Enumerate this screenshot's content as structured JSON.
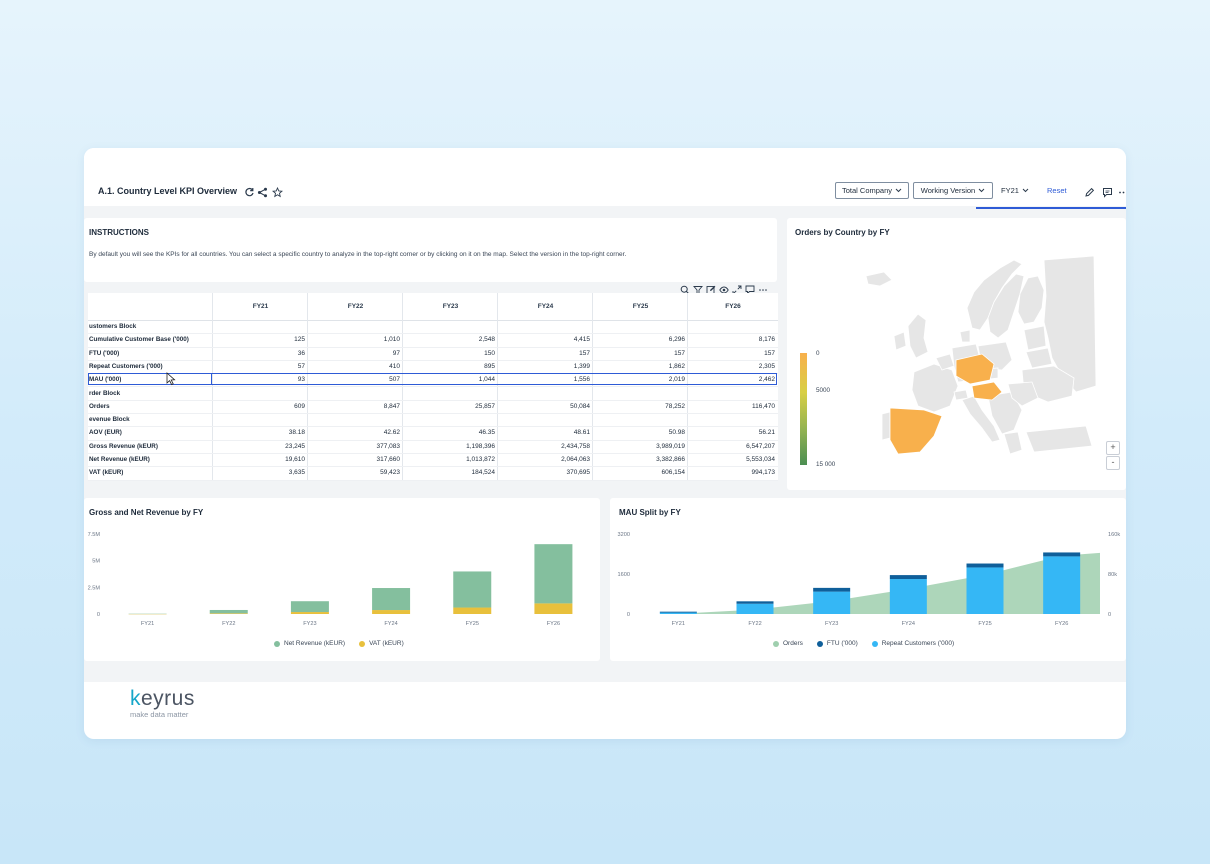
{
  "header": {
    "title": "A.1. Country Level KPI Overview",
    "company_select": "Total Company",
    "version_select": "Working Version",
    "fy_select": "FY21",
    "reset_label": "Reset"
  },
  "instructions": {
    "title": "INSTRUCTIONS",
    "text": "By default you will see the KPIs for all countries. You can select a specific country to analyze in the top-right corner or by clicking on it on the map. Select the version in the top-right corner."
  },
  "table": {
    "columns": [
      "FY21",
      "FY22",
      "FY23",
      "FY24",
      "FY25",
      "FY26"
    ],
    "rows": [
      {
        "label": "ustomers Block",
        "values": [
          "",
          "",
          "",
          "",
          "",
          ""
        ]
      },
      {
        "label": "Cumulative Customer Base ('000)",
        "values": [
          "125",
          "1,010",
          "2,548",
          "4,415",
          "6,296",
          "8,176"
        ]
      },
      {
        "label": "FTU ('000)",
        "values": [
          "36",
          "97",
          "150",
          "157",
          "157",
          "157"
        ]
      },
      {
        "label": "Repeat Customers ('000)",
        "values": [
          "57",
          "410",
          "895",
          "1,399",
          "1,862",
          "2,305"
        ]
      },
      {
        "label": "MAU ('000)",
        "values": [
          "93",
          "507",
          "1,044",
          "1,556",
          "2,019",
          "2,462"
        ]
      },
      {
        "label": "rder Block",
        "values": [
          "",
          "",
          "",
          "",
          "",
          ""
        ]
      },
      {
        "label": "Orders",
        "values": [
          "609",
          "8,847",
          "25,857",
          "50,084",
          "78,252",
          "116,470"
        ]
      },
      {
        "label": "evenue Block",
        "values": [
          "",
          "",
          "",
          "",
          "",
          ""
        ]
      },
      {
        "label": "AOV (EUR)",
        "values": [
          "38.18",
          "42.62",
          "46.35",
          "48.61",
          "50.98",
          "56.21"
        ]
      },
      {
        "label": "Gross Revenue (kEUR)",
        "values": [
          "23,245",
          "377,083",
          "1,198,396",
          "2,434,758",
          "3,989,019",
          "6,547,207"
        ]
      },
      {
        "label": "Net Revenue (kEUR)",
        "values": [
          "19,610",
          "317,660",
          "1,013,872",
          "2,064,063",
          "3,382,866",
          "5,553,034"
        ]
      },
      {
        "label": "VAT (kEUR)",
        "values": [
          "3,635",
          "59,423",
          "184,524",
          "370,695",
          "606,154",
          "994,173"
        ]
      }
    ]
  },
  "map": {
    "title": "Orders by Country by FY",
    "legend_min": "0",
    "legend_mid": "5000",
    "legend_max": "15 000",
    "zoom_in": "+",
    "zoom_out": "-",
    "highlight_color": "#f8b04c"
  },
  "chart_data": [
    {
      "type": "bar",
      "title": "Gross and Net Revenue by FY",
      "stacked": true,
      "categories": [
        "FY21",
        "FY22",
        "FY23",
        "FY24",
        "FY25",
        "FY26"
      ],
      "series": [
        {
          "name": "Net Revenue (kEUR)",
          "color": "#84bf9e",
          "values": [
            19610,
            317660,
            1013872,
            2064063,
            3382866,
            5553034
          ]
        },
        {
          "name": "VAT (kEUR)",
          "color": "#e8c03c",
          "values": [
            3635,
            59423,
            184524,
            370695,
            606154,
            994173
          ]
        }
      ],
      "yticks": [
        "0",
        "2.5M",
        "5M",
        "7.5M"
      ],
      "ylim": [
        0,
        7500000
      ]
    },
    {
      "type": "bar",
      "title": "MAU Split by FY",
      "categories": [
        "FY21",
        "FY22",
        "FY23",
        "FY24",
        "FY25",
        "FY26"
      ],
      "series": [
        {
          "name": "Orders",
          "type": "area",
          "axis": "right",
          "color": "#9fcfae",
          "values": [
            609,
            8847,
            25857,
            50084,
            78252,
            116470
          ]
        },
        {
          "name": "FTU ('000)",
          "type": "bar",
          "axis": "left",
          "color": "#0f5f9a",
          "values": [
            36,
            97,
            150,
            157,
            157,
            157
          ]
        },
        {
          "name": "Repeat Customers ('000)",
          "type": "bar",
          "axis": "left",
          "color": "#35b7f5",
          "values": [
            57,
            410,
            895,
            1399,
            1862,
            2305
          ]
        }
      ],
      "yticks_left": [
        "0",
        "1600",
        "3200"
      ],
      "yticks_right": [
        "0",
        "80k",
        "160k"
      ],
      "ylim_left": [
        0,
        3200
      ],
      "ylim_right": [
        0,
        160000
      ]
    }
  ],
  "footer": {
    "logo_k": "k",
    "logo_rest": "eyrus",
    "tagline": "make data matter"
  }
}
